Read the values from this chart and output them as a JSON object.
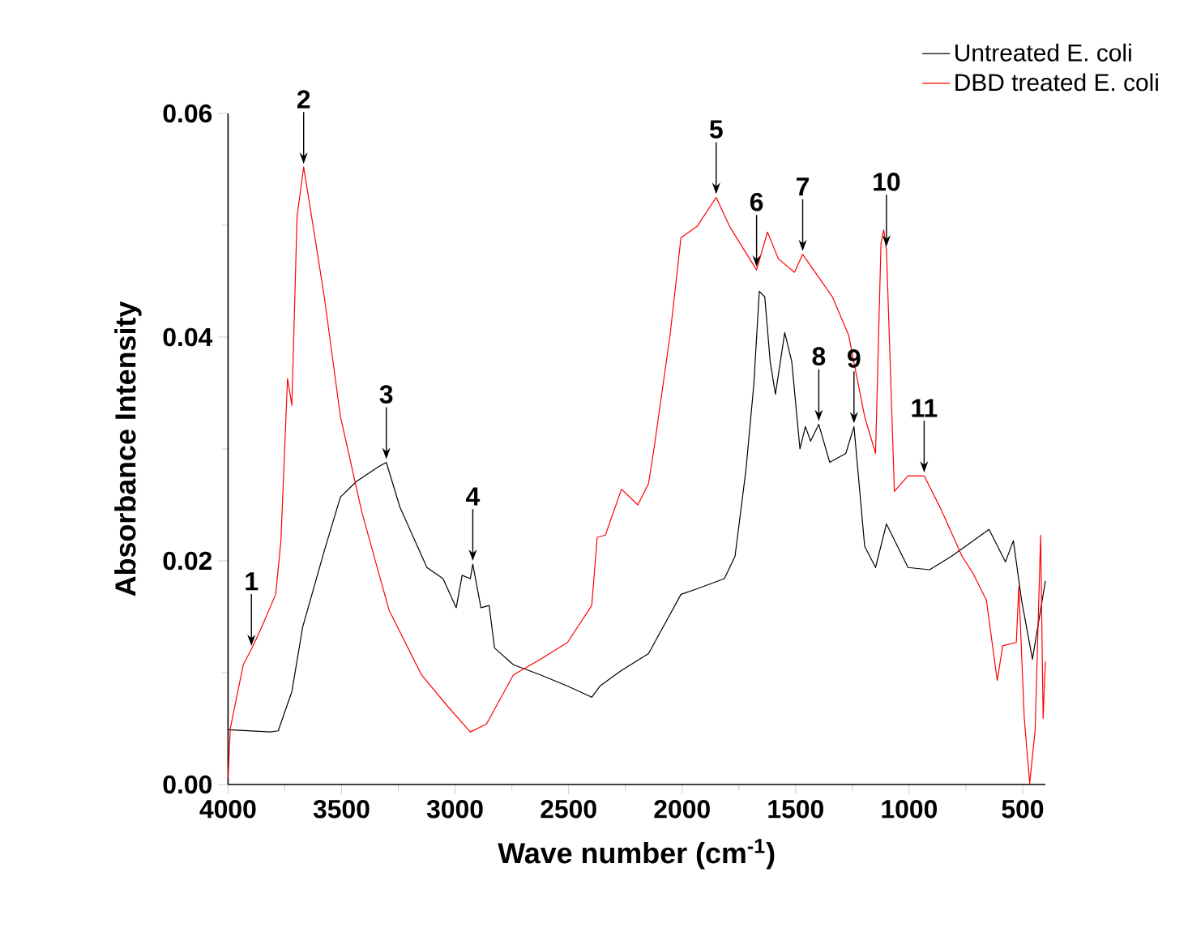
{
  "chart_data": {
    "type": "line",
    "xlabel": "Wave number (cm$^{-1}$)",
    "ylabel": "Absorbance Intensity",
    "xlim": [
      4000,
      400
    ],
    "ylim": [
      0,
      0.06
    ],
    "xticks": [
      4000,
      3500,
      3000,
      2500,
      2000,
      1500,
      1000,
      500
    ],
    "yticks": [
      {
        "value": 0,
        "label": "0.00"
      },
      {
        "value": 0.02,
        "label": "0.02"
      },
      {
        "value": 0.04,
        "label": "0.04"
      },
      {
        "value": 0.06,
        "label": "0.06"
      }
    ],
    "legend": "top right",
    "grid": false,
    "marker": "none",
    "line_style": "solid",
    "series": [
      {
        "name": "Untreated E. coli",
        "color": "#000000",
        "x": [
          4000,
          3814,
          3779,
          3719,
          3671,
          3576,
          3505,
          3434,
          3338,
          3303,
          3243,
          3124,
          3053,
          2995,
          2969,
          2933,
          2922,
          2886,
          2850,
          2826,
          2743,
          2624,
          2505,
          2398,
          2362,
          2267,
          2148,
          2005,
          1934,
          1814,
          1767,
          1719,
          1684,
          1660,
          1636,
          1612,
          1589,
          1548,
          1517,
          1481,
          1457,
          1434,
          1398,
          1350,
          1279,
          1243,
          1196,
          1148,
          1100,
          1005,
          910,
          814,
          648,
          576,
          541,
          505,
          457,
          400
        ],
        "values": [
          0.0049,
          0.0047,
          0.0048,
          0.0083,
          0.0141,
          0.0209,
          0.0257,
          0.0271,
          0.0284,
          0.0288,
          0.0248,
          0.0194,
          0.0184,
          0.0158,
          0.0187,
          0.0184,
          0.0197,
          0.0158,
          0.016,
          0.0122,
          0.0107,
          0.0098,
          0.0088,
          0.0078,
          0.0088,
          0.0102,
          0.0117,
          0.017,
          0.0175,
          0.0184,
          0.0204,
          0.0281,
          0.0358,
          0.0441,
          0.0436,
          0.0378,
          0.0349,
          0.0404,
          0.0378,
          0.03,
          0.032,
          0.0307,
          0.0322,
          0.0288,
          0.0296,
          0.032,
          0.0213,
          0.0194,
          0.0233,
          0.0194,
          0.0192,
          0.0204,
          0.0228,
          0.0199,
          0.0218,
          0.0165,
          0.0112,
          0.0182
        ]
      },
      {
        "name": "DBD treated E. coli",
        "color": "#ff0000",
        "x": [
          4000,
          3990,
          3933,
          3897,
          3862,
          3790,
          3767,
          3738,
          3719,
          3696,
          3667,
          3636,
          3576,
          3505,
          3410,
          3291,
          3148,
          3029,
          2933,
          2862,
          2743,
          2624,
          2505,
          2398,
          2374,
          2338,
          2267,
          2195,
          2148,
          2124,
          2053,
          2005,
          1934,
          1850,
          1791,
          1672,
          1624,
          1576,
          1505,
          1469,
          1338,
          1267,
          1196,
          1148,
          1124,
          1112,
          1100,
          1065,
          1005,
          934,
          862,
          767,
          719,
          660,
          612,
          588,
          528,
          517,
          493,
          469,
          445,
          421,
          410,
          400
        ],
        "values": [
          0.0006,
          0.005,
          0.0107,
          0.0121,
          0.0136,
          0.017,
          0.0218,
          0.0363,
          0.0339,
          0.0508,
          0.0552,
          0.0513,
          0.0436,
          0.0329,
          0.0243,
          0.0156,
          0.0098,
          0.0069,
          0.0047,
          0.0054,
          0.0098,
          0.0112,
          0.0127,
          0.016,
          0.0221,
          0.0223,
          0.0264,
          0.025,
          0.0269,
          0.03,
          0.0402,
          0.0489,
          0.0499,
          0.0525,
          0.0499,
          0.046,
          0.0494,
          0.047,
          0.0458,
          0.0474,
          0.0436,
          0.0402,
          0.0329,
          0.0296,
          0.0484,
          0.0496,
          0.0478,
          0.0262,
          0.0276,
          0.0276,
          0.0247,
          0.0204,
          0.0189,
          0.0165,
          0.0093,
          0.0124,
          0.0127,
          0.0177,
          0.0059,
          0.0001,
          0.0049,
          0.0223,
          0.0059,
          0.011
        ]
      }
    ],
    "annotations": [
      {
        "text": "1",
        "x": 3897,
        "y": 0.0121
      },
      {
        "text": "2",
        "x": 3667,
        "y": 0.0552
      },
      {
        "text": "3",
        "x": 3303,
        "y": 0.0288
      },
      {
        "text": "4",
        "x": 2922,
        "y": 0.0197
      },
      {
        "text": "5",
        "x": 1850,
        "y": 0.0525
      },
      {
        "text": "6",
        "x": 1672,
        "y": 0.046
      },
      {
        "text": "7",
        "x": 1469,
        "y": 0.0474
      },
      {
        "text": "8",
        "x": 1398,
        "y": 0.0322
      },
      {
        "text": "9",
        "x": 1243,
        "y": 0.032
      },
      {
        "text": "10",
        "x": 1100,
        "y": 0.0478
      },
      {
        "text": "11",
        "x": 934,
        "y": 0.0276
      }
    ]
  }
}
